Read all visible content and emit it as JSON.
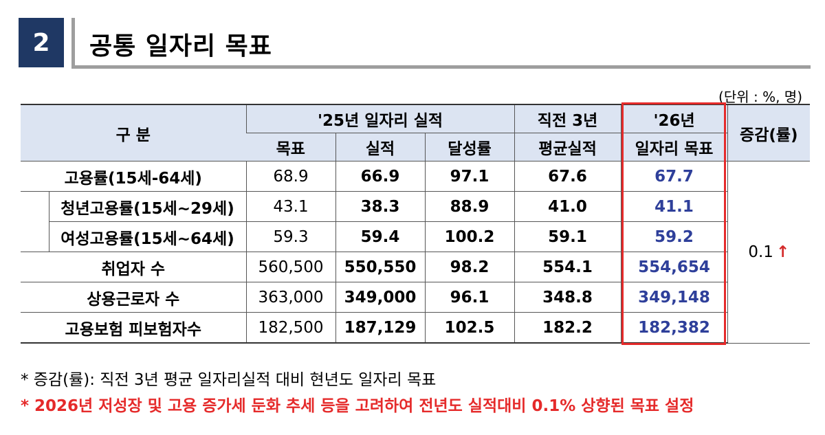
{
  "section": {
    "number": "2",
    "title": "공통 일자리 목표"
  },
  "unit": "(단위 : %, 명)",
  "table": {
    "header": {
      "category": "구  분",
      "group_2025": "'25년 일자리 실적",
      "col_target": "목표",
      "col_actual": "실적",
      "col_rate": "달성률",
      "col_prev3_line1": "직전 3년",
      "col_prev3_line2": "평균실적",
      "col_2026_line1": "'26년",
      "col_2026_line2": "일자리 목표",
      "col_change": "증감(률)"
    },
    "rows": [
      {
        "label": "고용률(15세-64세)",
        "target": "68.9",
        "actual": "66.9",
        "rate": "97.1",
        "prev3": "67.6",
        "goal2026": "67.7"
      },
      {
        "label": "청년고용률(15세~29세)",
        "target": "43.1",
        "actual": "38.3",
        "rate": "88.9",
        "prev3": "41.0",
        "goal2026": "41.1"
      },
      {
        "label": "여성고용률(15세~64세)",
        "target": "59.3",
        "actual": "59.4",
        "rate": "100.2",
        "prev3": "59.1",
        "goal2026": "59.2"
      },
      {
        "label": "취업자 수",
        "target": "560,500",
        "actual": "550,550",
        "rate": "98.2",
        "prev3": "554.1",
        "goal2026": "554,654"
      },
      {
        "label": "상용근로자 수",
        "target": "363,000",
        "actual": "349,000",
        "rate": "96.1",
        "prev3": "348.8",
        "goal2026": "349,148"
      },
      {
        "label": "고용보험 피보험자수",
        "target": "182,500",
        "actual": "187,129",
        "rate": "102.5",
        "prev3": "182.2",
        "goal2026": "182,382"
      }
    ],
    "change_value": "0.1",
    "change_arrow": "↑"
  },
  "notes": {
    "note1": "* 증감(률): 직전 3년 평균 일자리실적 대비 현년도 일자리 목표",
    "note2": "* 2026년 저성장 및 고용 증가세 둔화 추세 등을 고려하여 전년도 실적대비 0.1% 상향된 목표 설정"
  },
  "colors": {
    "section_box": "#1f3864",
    "header_bg": "#dce4f2",
    "highlight_border": "#e52a2a",
    "goal_text": "#2e3f9a",
    "note_red": "#e52a2a"
  }
}
